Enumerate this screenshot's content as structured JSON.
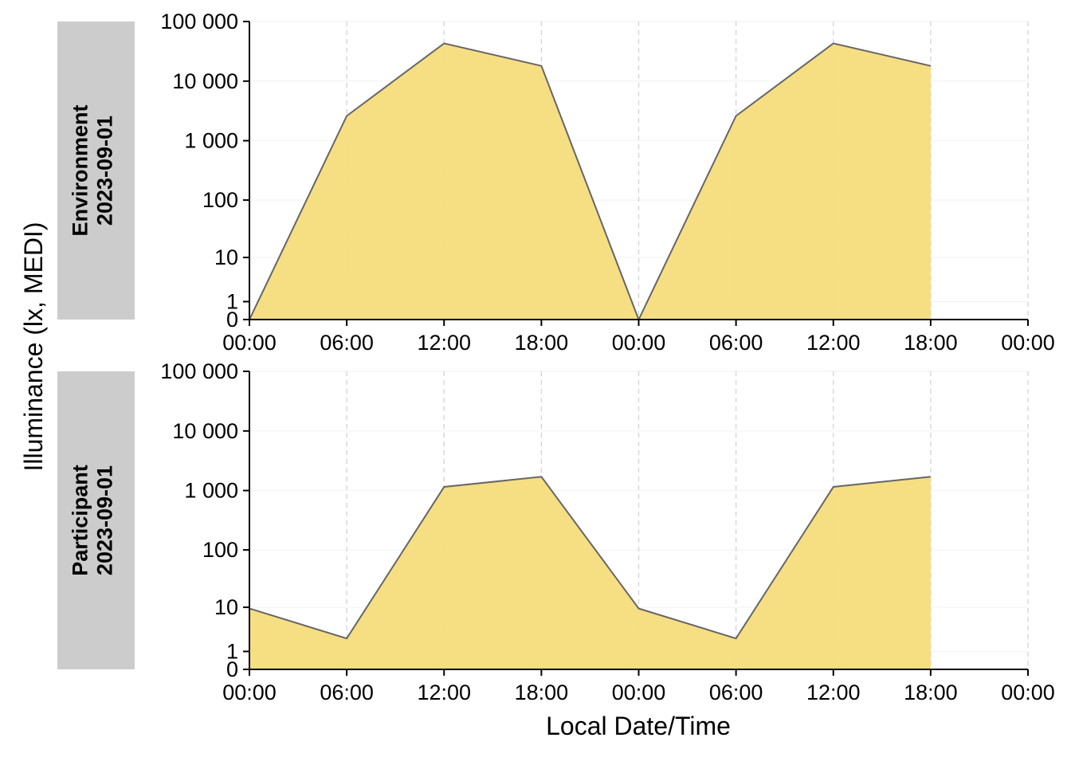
{
  "chart_data": {
    "type": "area",
    "xlabel": "Local Date/Time",
    "ylabel": "Illuminance (lx, MEDI)",
    "y_scale": "symlog",
    "ylim": [
      0,
      100000
    ],
    "y_ticks": [
      0,
      1,
      10,
      100,
      1000,
      10000,
      100000
    ],
    "y_tick_labels": [
      "0",
      "1",
      "10",
      "100",
      "1 000",
      "10 000",
      "100 000"
    ],
    "x_ticks": [
      "2023-09-01T00:00",
      "2023-09-01T06:00",
      "2023-09-01T12:00",
      "2023-09-01T18:00",
      "2023-09-02T00:00",
      "2023-09-02T06:00",
      "2023-09-02T12:00",
      "2023-09-02T18:00",
      "2023-09-03T00:00"
    ],
    "x_tick_labels": [
      "00:00",
      "06:00",
      "12:00",
      "18:00",
      "00:00",
      "06:00",
      "12:00",
      "18:00",
      "00:00"
    ],
    "xlim": [
      "2023-09-01T00:00",
      "2023-09-03T00:00"
    ],
    "grid": "dashed vertical at x ticks",
    "fill_color": "#f5dc7c",
    "line_color": "#666666",
    "strip_color": "#cccccc",
    "panels": [
      {
        "strip_label_1": "Environment",
        "strip_label_2": "2023-09-01",
        "x": [
          "2023-09-01T00:00",
          "2023-09-01T06:00",
          "2023-09-01T12:00",
          "2023-09-01T18:00",
          "2023-09-02T00:00",
          "2023-09-02T06:00",
          "2023-09-02T12:00",
          "2023-09-02T18:00"
        ],
        "values": [
          0,
          2600,
          43000,
          18000,
          0,
          2600,
          43000,
          18000
        ]
      },
      {
        "strip_label_1": "Participant",
        "strip_label_2": "2023-09-01",
        "x": [
          "2023-09-01T00:00",
          "2023-09-01T06:00",
          "2023-09-01T12:00",
          "2023-09-01T18:00",
          "2023-09-02T00:00",
          "2023-09-02T06:00",
          "2023-09-02T12:00",
          "2023-09-02T18:00"
        ],
        "values": [
          9.5,
          2.3,
          1150,
          1700,
          9.5,
          2.3,
          1150,
          1700
        ]
      }
    ]
  }
}
